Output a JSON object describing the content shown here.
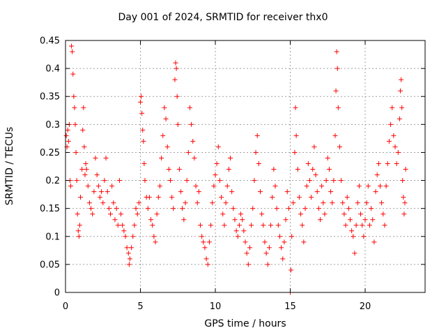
{
  "chart_data": {
    "type": "scatter",
    "title": "Day 001 of 2024, SRMTID for receiver thx0",
    "xlabel": "GPS time / hours",
    "ylabel": "SRMTID / TECUs",
    "xlim": [
      0,
      24
    ],
    "ylim": [
      0,
      0.45
    ],
    "xticks": [
      0,
      5,
      10,
      15,
      20
    ],
    "xtick_labels": [
      "0",
      "5",
      "10",
      "15",
      "20"
    ],
    "yticks": [
      0,
      0.05,
      0.1,
      0.15,
      0.2,
      0.25,
      0.3,
      0.35,
      0.4,
      0.45
    ],
    "ytick_labels": [
      "0",
      "0.05",
      "0.1",
      "0.15",
      "0.2",
      "0.25",
      "0.3",
      "0.35",
      "0.4",
      "0.45"
    ],
    "grid": true,
    "marker": "+",
    "series": [
      {
        "color": "#ff0000",
        "points": [
          [
            0.05,
            0.28
          ],
          [
            0.1,
            0.26
          ],
          [
            0.15,
            0.29
          ],
          [
            0.2,
            0.27
          ],
          [
            0.25,
            0.3
          ],
          [
            0.3,
            0.2
          ],
          [
            0.35,
            0.19
          ],
          [
            0.4,
            0.44
          ],
          [
            0.45,
            0.43
          ],
          [
            0.5,
            0.39
          ],
          [
            0.55,
            0.35
          ],
          [
            0.6,
            0.33
          ],
          [
            0.65,
            0.3
          ],
          [
            0.7,
            0.25
          ],
          [
            0.75,
            0.2
          ],
          [
            0.8,
            0.14
          ],
          [
            0.85,
            0.11
          ],
          [
            0.9,
            0.1
          ],
          [
            0.95,
            0.12
          ],
          [
            1.0,
            0.17
          ],
          [
            1.1,
            0.22
          ],
          [
            1.15,
            0.29
          ],
          [
            1.2,
            0.33
          ],
          [
            1.25,
            0.26
          ],
          [
            1.3,
            0.21
          ],
          [
            1.35,
            0.23
          ],
          [
            1.4,
            0.22
          ],
          [
            1.5,
            0.19
          ],
          [
            1.6,
            0.16
          ],
          [
            1.7,
            0.15
          ],
          [
            1.8,
            0.14
          ],
          [
            1.9,
            0.18
          ],
          [
            2.0,
            0.24
          ],
          [
            2.1,
            0.21
          ],
          [
            2.2,
            0.19
          ],
          [
            2.3,
            0.17
          ],
          [
            2.4,
            0.18
          ],
          [
            2.5,
            0.16
          ],
          [
            2.6,
            0.2
          ],
          [
            2.7,
            0.24
          ],
          [
            2.8,
            0.18
          ],
          [
            2.9,
            0.15
          ],
          [
            3.0,
            0.14
          ],
          [
            3.1,
            0.19
          ],
          [
            3.2,
            0.16
          ],
          [
            3.3,
            0.13
          ],
          [
            3.4,
            0.15
          ],
          [
            3.5,
            0.12
          ],
          [
            3.6,
            0.2
          ],
          [
            3.7,
            0.14
          ],
          [
            3.8,
            0.12
          ],
          [
            3.9,
            0.11
          ],
          [
            4.0,
            0.1
          ],
          [
            4.1,
            0.08
          ],
          [
            4.2,
            0.07
          ],
          [
            4.25,
            0.05
          ],
          [
            4.3,
            0.06
          ],
          [
            4.4,
            0.08
          ],
          [
            4.5,
            0.1
          ],
          [
            4.6,
            0.12
          ],
          [
            4.7,
            0.15
          ],
          [
            4.8,
            0.14
          ],
          [
            4.9,
            0.16
          ],
          [
            5.0,
            0.34
          ],
          [
            5.05,
            0.35
          ],
          [
            5.1,
            0.32
          ],
          [
            5.15,
            0.29
          ],
          [
            5.2,
            0.27
          ],
          [
            5.25,
            0.23
          ],
          [
            5.3,
            0.2
          ],
          [
            5.4,
            0.17
          ],
          [
            5.5,
            0.15
          ],
          [
            5.6,
            0.17
          ],
          [
            5.7,
            0.13
          ],
          [
            5.8,
            0.12
          ],
          [
            5.9,
            0.1
          ],
          [
            6.0,
            0.09
          ],
          [
            6.1,
            0.14
          ],
          [
            6.2,
            0.17
          ],
          [
            6.3,
            0.19
          ],
          [
            6.4,
            0.24
          ],
          [
            6.5,
            0.28
          ],
          [
            6.6,
            0.33
          ],
          [
            6.7,
            0.31
          ],
          [
            6.8,
            0.26
          ],
          [
            6.9,
            0.22
          ],
          [
            7.0,
            0.2
          ],
          [
            7.1,
            0.17
          ],
          [
            7.2,
            0.15
          ],
          [
            7.3,
            0.38
          ],
          [
            7.35,
            0.41
          ],
          [
            7.4,
            0.4
          ],
          [
            7.45,
            0.35
          ],
          [
            7.5,
            0.3
          ],
          [
            7.6,
            0.22
          ],
          [
            7.7,
            0.18
          ],
          [
            7.8,
            0.15
          ],
          [
            7.9,
            0.13
          ],
          [
            8.0,
            0.16
          ],
          [
            8.1,
            0.2
          ],
          [
            8.2,
            0.25
          ],
          [
            8.3,
            0.33
          ],
          [
            8.4,
            0.3
          ],
          [
            8.5,
            0.27
          ],
          [
            8.6,
            0.24
          ],
          [
            8.7,
            0.19
          ],
          [
            8.8,
            0.16
          ],
          [
            8.9,
            0.18
          ],
          [
            9.0,
            0.12
          ],
          [
            9.1,
            0.1
          ],
          [
            9.2,
            0.09
          ],
          [
            9.3,
            0.08
          ],
          [
            9.4,
            0.06
          ],
          [
            9.5,
            0.05
          ],
          [
            9.6,
            0.09
          ],
          [
            9.7,
            0.12
          ],
          [
            9.8,
            0.16
          ],
          [
            9.9,
            0.19
          ],
          [
            10.0,
            0.21
          ],
          [
            10.1,
            0.23
          ],
          [
            10.2,
            0.26
          ],
          [
            10.3,
            0.2
          ],
          [
            10.4,
            0.17
          ],
          [
            10.5,
            0.14
          ],
          [
            10.6,
            0.12
          ],
          [
            10.7,
            0.16
          ],
          [
            10.8,
            0.19
          ],
          [
            10.9,
            0.22
          ],
          [
            11.0,
            0.24
          ],
          [
            11.1,
            0.18
          ],
          [
            11.2,
            0.15
          ],
          [
            11.3,
            0.13
          ],
          [
            11.4,
            0.11
          ],
          [
            11.5,
            0.1
          ],
          [
            11.6,
            0.12
          ],
          [
            11.7,
            0.14
          ],
          [
            11.8,
            0.13
          ],
          [
            11.9,
            0.11
          ],
          [
            12.0,
            0.09
          ],
          [
            12.1,
            0.07
          ],
          [
            12.2,
            0.05
          ],
          [
            12.3,
            0.08
          ],
          [
            12.4,
            0.12
          ],
          [
            12.5,
            0.15
          ],
          [
            12.6,
            0.2
          ],
          [
            12.7,
            0.25
          ],
          [
            12.8,
            0.28
          ],
          [
            12.9,
            0.23
          ],
          [
            13.0,
            0.18
          ],
          [
            13.1,
            0.14
          ],
          [
            13.2,
            0.12
          ],
          [
            13.3,
            0.09
          ],
          [
            13.4,
            0.07
          ],
          [
            13.5,
            0.05
          ],
          [
            13.6,
            0.08
          ],
          [
            13.7,
            0.12
          ],
          [
            13.8,
            0.17
          ],
          [
            13.9,
            0.22
          ],
          [
            14.0,
            0.19
          ],
          [
            14.1,
            0.15
          ],
          [
            14.2,
            0.12
          ],
          [
            14.3,
            0.1
          ],
          [
            14.4,
            0.08
          ],
          [
            14.5,
            0.06
          ],
          [
            14.6,
            0.09
          ],
          [
            14.7,
            0.13
          ],
          [
            14.8,
            0.18
          ],
          [
            14.9,
            0.15
          ],
          [
            15.0,
            0.0
          ],
          [
            15.05,
            0.04
          ],
          [
            15.1,
            0.1
          ],
          [
            15.2,
            0.16
          ],
          [
            15.3,
            0.25
          ],
          [
            15.35,
            0.33
          ],
          [
            15.4,
            0.28
          ],
          [
            15.5,
            0.22
          ],
          [
            15.6,
            0.17
          ],
          [
            15.7,
            0.14
          ],
          [
            15.8,
            0.12
          ],
          [
            15.9,
            0.09
          ],
          [
            16.0,
            0.15
          ],
          [
            16.1,
            0.19
          ],
          [
            16.2,
            0.23
          ],
          [
            16.3,
            0.2
          ],
          [
            16.4,
            0.17
          ],
          [
            16.5,
            0.22
          ],
          [
            16.6,
            0.26
          ],
          [
            16.7,
            0.21
          ],
          [
            16.8,
            0.18
          ],
          [
            16.9,
            0.15
          ],
          [
            17.0,
            0.13
          ],
          [
            17.1,
            0.19
          ],
          [
            17.2,
            0.16
          ],
          [
            17.3,
            0.14
          ],
          [
            17.4,
            0.2
          ],
          [
            17.5,
            0.24
          ],
          [
            17.6,
            0.22
          ],
          [
            17.7,
            0.18
          ],
          [
            17.8,
            0.16
          ],
          [
            17.9,
            0.2
          ],
          [
            18.0,
            0.28
          ],
          [
            18.05,
            0.36
          ],
          [
            18.1,
            0.43
          ],
          [
            18.15,
            0.4
          ],
          [
            18.2,
            0.33
          ],
          [
            18.3,
            0.26
          ],
          [
            18.4,
            0.2
          ],
          [
            18.5,
            0.16
          ],
          [
            18.6,
            0.14
          ],
          [
            18.7,
            0.12
          ],
          [
            18.8,
            0.17
          ],
          [
            18.9,
            0.15
          ],
          [
            19.0,
            0.13
          ],
          [
            19.1,
            0.11
          ],
          [
            19.2,
            0.1
          ],
          [
            19.3,
            0.07
          ],
          [
            19.4,
            0.12
          ],
          [
            19.5,
            0.16
          ],
          [
            19.6,
            0.19
          ],
          [
            19.7,
            0.14
          ],
          [
            19.8,
            0.12
          ],
          [
            19.9,
            0.1
          ],
          [
            20.0,
            0.13
          ],
          [
            20.1,
            0.16
          ],
          [
            20.2,
            0.19
          ],
          [
            20.3,
            0.12
          ],
          [
            20.4,
            0.15
          ],
          [
            20.5,
            0.13
          ],
          [
            20.6,
            0.09
          ],
          [
            20.7,
            0.18
          ],
          [
            20.8,
            0.21
          ],
          [
            20.9,
            0.23
          ],
          [
            21.0,
            0.19
          ],
          [
            21.1,
            0.16
          ],
          [
            21.2,
            0.14
          ],
          [
            21.3,
            0.12
          ],
          [
            21.4,
            0.19
          ],
          [
            21.5,
            0.23
          ],
          [
            21.6,
            0.27
          ],
          [
            21.7,
            0.3
          ],
          [
            21.8,
            0.33
          ],
          [
            21.9,
            0.28
          ],
          [
            22.0,
            0.26
          ],
          [
            22.1,
            0.23
          ],
          [
            22.2,
            0.25
          ],
          [
            22.3,
            0.31
          ],
          [
            22.35,
            0.36
          ],
          [
            22.4,
            0.38
          ],
          [
            22.45,
            0.33
          ],
          [
            22.5,
            0.2
          ],
          [
            22.55,
            0.17
          ],
          [
            22.6,
            0.14
          ],
          [
            22.65,
            0.16
          ],
          [
            22.7,
            0.22
          ]
        ]
      }
    ]
  }
}
